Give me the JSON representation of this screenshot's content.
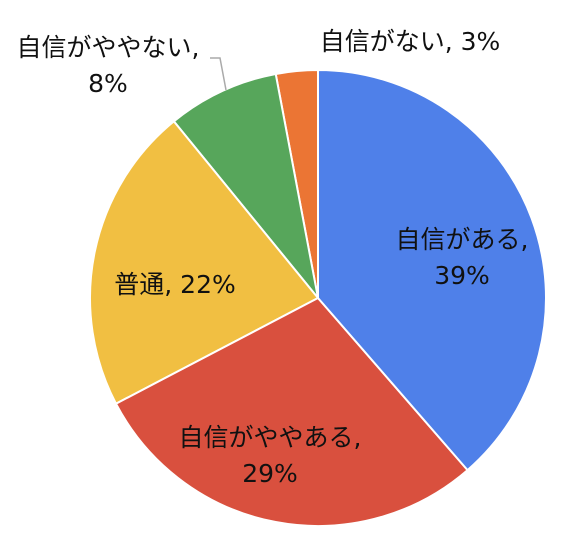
{
  "chart_data": {
    "type": "pie",
    "value_labels": [
      "自信がある, 39%",
      "自信がややある, 29%",
      "普通, 22%",
      "自信がややない, 8%",
      "自信がない, 3%"
    ],
    "values": [
      39,
      29,
      22,
      8,
      3
    ],
    "colors": [
      "#4f80e9",
      "#d9503e",
      "#f1bf42",
      "#57a65b",
      "#eb7534"
    ]
  }
}
